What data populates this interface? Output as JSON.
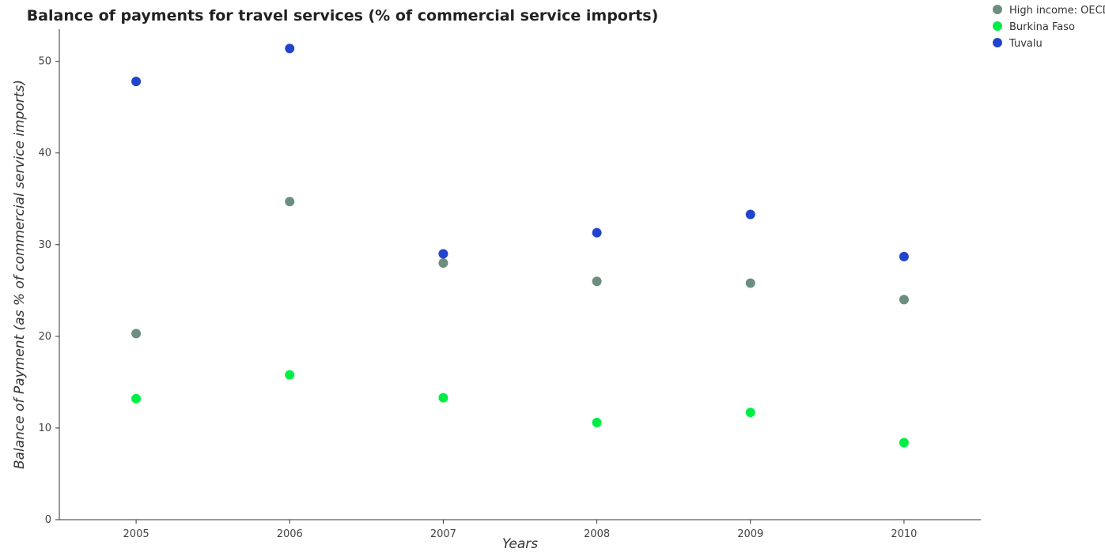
{
  "chart_data": {
    "type": "scatter",
    "title": "Balance of payments for travel services (% of commercial service imports)",
    "xlabel": "Years",
    "ylabel": "Balance of Payment (as % of commercial service imports)",
    "categories": [
      "2005",
      "2006",
      "2007",
      "2008",
      "2009",
      "2010"
    ],
    "ylim": [
      0,
      53.5
    ],
    "yticks": [
      0,
      10,
      20,
      30,
      40,
      50
    ],
    "ytick_labels": [
      "0",
      "10",
      "20",
      "30",
      "40",
      "50"
    ],
    "grid": false,
    "legend_position": "top-right",
    "series": [
      {
        "name": "High income: OECD",
        "color": "#6b8e7f",
        "values": [
          20.3,
          34.7,
          28.0,
          26.0,
          25.8,
          24.0
        ]
      },
      {
        "name": "Burkina Faso",
        "color": "#00ee44",
        "values": [
          13.2,
          15.8,
          13.3,
          10.6,
          11.7,
          8.4
        ]
      },
      {
        "name": "Tuvalu",
        "color": "#2244cc",
        "values": [
          47.8,
          51.4,
          29.0,
          31.3,
          33.3,
          28.7
        ]
      }
    ]
  }
}
